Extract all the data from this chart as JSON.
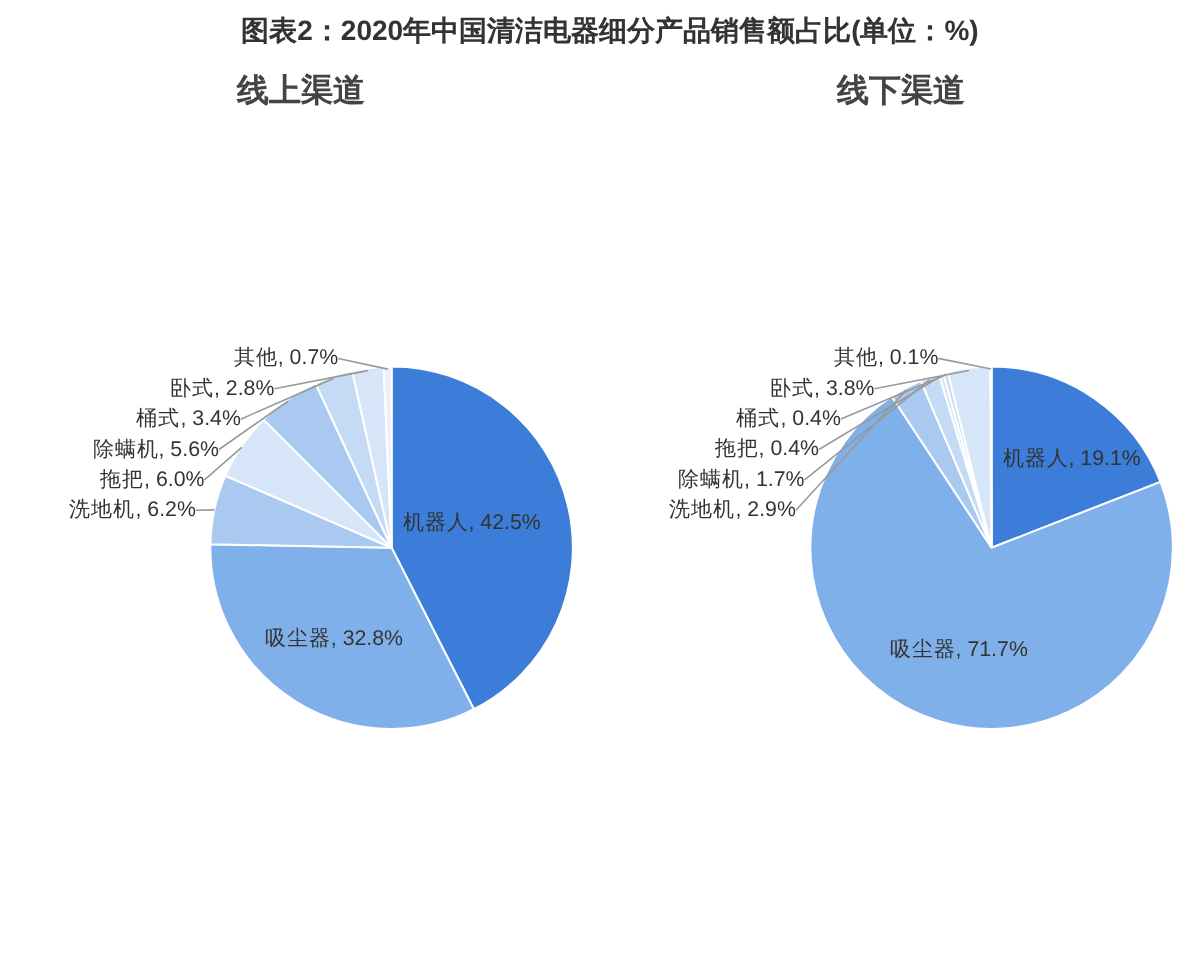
{
  "chart_data": [
    {
      "type": "pie",
      "title": "图表2：2020年中国清洁电器细分产品销售额占比(单位：%)",
      "subtitle": "线上渠道",
      "categories": [
        "机器人",
        "吸尘器",
        "洗地机",
        "拖把",
        "除螨机",
        "桶式",
        "卧式",
        "其他"
      ],
      "values": [
        42.5,
        32.8,
        6.2,
        6.0,
        5.6,
        3.4,
        2.8,
        0.7
      ],
      "value_labels": [
        "42.5%",
        "32.8%",
        "6.2%",
        "6.0%",
        "5.6%",
        "3.4%",
        "2.8%",
        "0.7%"
      ],
      "colors": [
        "#3b7dd8",
        "#7fb0ea",
        "#a9c9f0",
        "#d6e6f8",
        "#a9c9f0",
        "#c5dbf5",
        "#d6e6f8",
        "#e8f0fb"
      ]
    },
    {
      "type": "pie",
      "subtitle": "线下渠道",
      "categories": [
        "机器人",
        "吸尘器",
        "洗地机",
        "除螨机",
        "拖把",
        "桶式",
        "卧式",
        "其他"
      ],
      "values": [
        19.1,
        71.7,
        2.9,
        1.7,
        0.4,
        0.4,
        3.8,
        0.1
      ],
      "value_labels": [
        "19.1%",
        "71.7%",
        "2.9%",
        "1.7%",
        "0.4%",
        "0.4%",
        "3.8%",
        "0.1%"
      ],
      "colors": [
        "#3b7dd8",
        "#7fb0ea",
        "#a9c9f0",
        "#c5dbf5",
        "#d6e6f8",
        "#c5dbf5",
        "#d6e6f8",
        "#e8f0fb"
      ]
    }
  ]
}
